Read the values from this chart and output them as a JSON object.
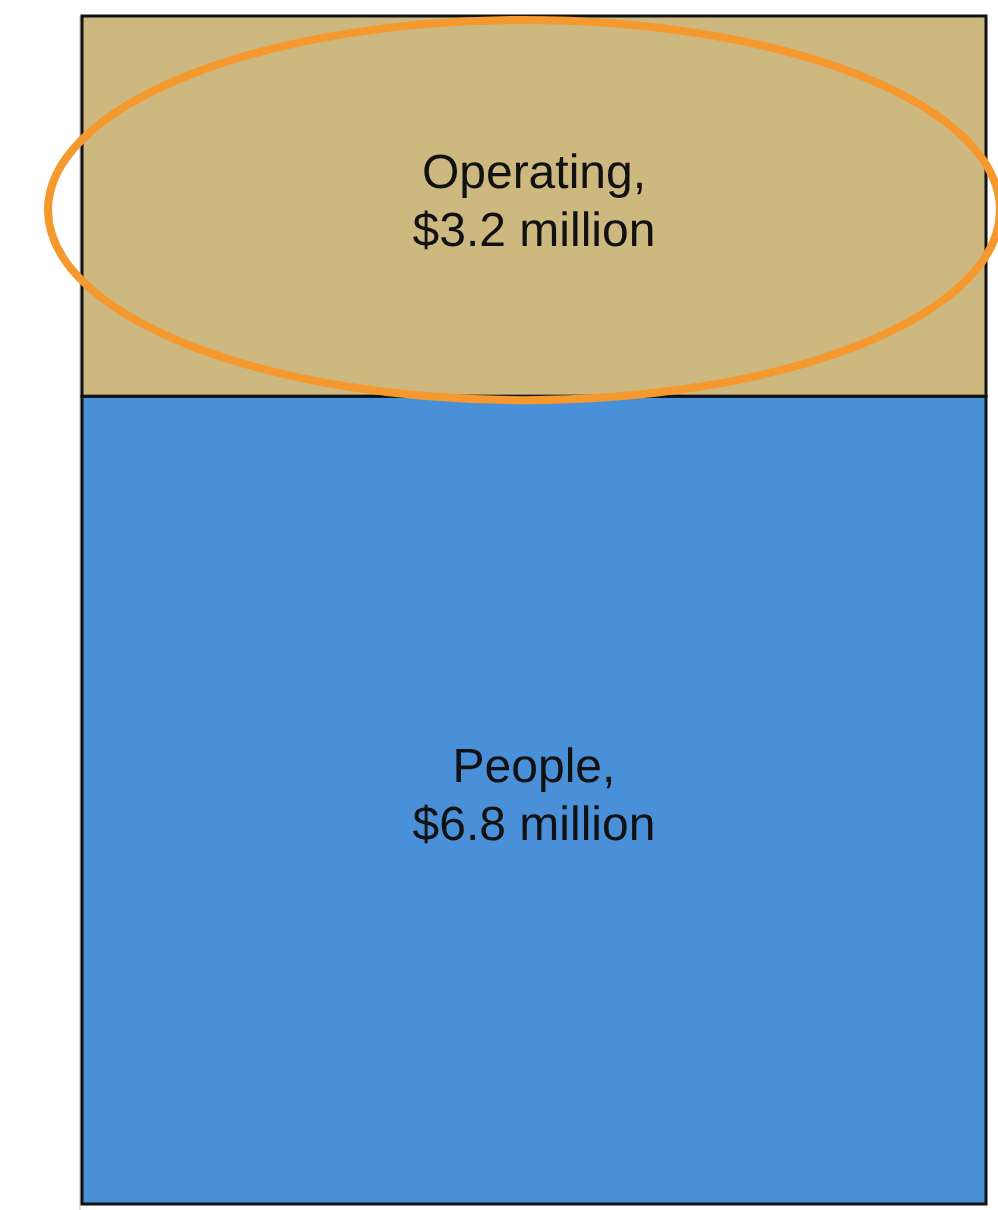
{
  "chart_data": {
    "type": "bar",
    "stacked": true,
    "categories": [
      null
    ],
    "series": [
      {
        "name": "People,",
        "color": "#4a90d9",
        "values": [
          6.8
        ],
        "value_labels": [
          "$6.8 million"
        ]
      },
      {
        "name": "Operating,",
        "color": "#cdb87f",
        "values": [
          3.2
        ],
        "value_labels": [
          "$3.2 million"
        ]
      }
    ]
  }
}
